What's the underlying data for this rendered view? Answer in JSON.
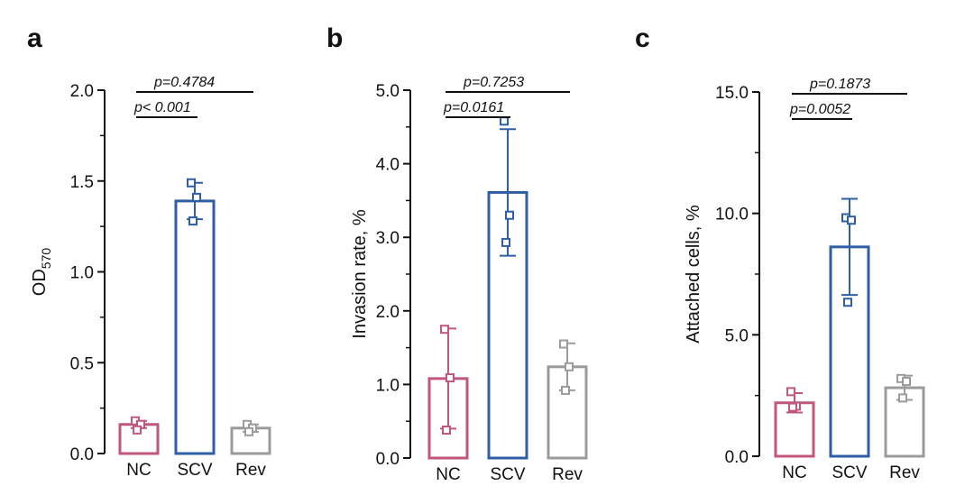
{
  "figure": {
    "panels": [
      "a",
      "b",
      "c"
    ]
  },
  "colors": {
    "NC": "#c1567e",
    "SCV": "#2d5ea6",
    "Rev": "#9b9b9b",
    "axis": "#111111"
  },
  "chart_data": [
    {
      "type": "bar",
      "panel": "a",
      "ylabel_main": "OD",
      "ylabel_sub": "570",
      "categories": [
        "NC",
        "SCV",
        "Rev"
      ],
      "values": [
        0.16,
        1.39,
        0.14
      ],
      "errors": [
        0.02,
        0.1,
        0.02
      ],
      "points": [
        [
          0.18,
          0.16,
          0.13
        ],
        [
          1.49,
          1.41,
          1.28
        ],
        [
          0.16,
          0.14,
          0.12
        ]
      ],
      "ylim": [
        0,
        2.0
      ],
      "yticks": [
        0,
        0.5,
        1.0,
        1.5,
        2.0
      ],
      "ytick_labels": [
        "0.0",
        "0.5",
        "1.0",
        "1.5",
        "2.0"
      ],
      "comparisons": [
        {
          "label": "p< 0.001",
          "from": 0,
          "to": 1
        },
        {
          "label": "p=0.4784",
          "from": 0,
          "to": 2
        }
      ]
    },
    {
      "type": "bar",
      "panel": "b",
      "ylabel_main": "Invasion rate, %",
      "ylabel_sub": "",
      "categories": [
        "NC",
        "SCV",
        "Rev"
      ],
      "values": [
        1.08,
        3.61,
        1.24
      ],
      "errors": [
        0.68,
        0.86,
        0.32
      ],
      "points": [
        [
          1.75,
          1.09,
          0.38
        ],
        [
          4.58,
          3.3,
          2.93
        ],
        [
          1.55,
          1.24,
          0.92
        ]
      ],
      "ylim": [
        0,
        5.0
      ],
      "yticks": [
        0,
        1.0,
        2.0,
        3.0,
        4.0,
        5.0
      ],
      "ytick_labels": [
        "0.0",
        "1.0",
        "2.0",
        "3.0",
        "4.0",
        "5.0"
      ],
      "comparisons": [
        {
          "label": "p=0.0161",
          "from": 0,
          "to": 1
        },
        {
          "label": "p=0.7253",
          "from": 0,
          "to": 2
        }
      ]
    },
    {
      "type": "bar",
      "panel": "c",
      "ylabel_main": "Attached cells, %",
      "ylabel_sub": "",
      "categories": [
        "NC",
        "SCV",
        "Rev"
      ],
      "values": [
        2.2,
        8.62,
        2.82
      ],
      "errors": [
        0.4,
        1.98,
        0.5
      ],
      "points": [
        [
          2.66,
          2.06,
          2.02
        ],
        [
          9.82,
          9.72,
          6.34
        ],
        [
          3.2,
          3.08,
          2.4
        ]
      ],
      "ylim": [
        0,
        15.0
      ],
      "yticks": [
        0,
        5.0,
        10.0,
        15.0
      ],
      "ytick_labels": [
        "0.0",
        "5.0",
        "10.0",
        "15.0"
      ],
      "comparisons": [
        {
          "label": "p=0.0052",
          "from": 0,
          "to": 1
        },
        {
          "label": "p=0.1873",
          "from": 0,
          "to": 2
        }
      ]
    }
  ]
}
